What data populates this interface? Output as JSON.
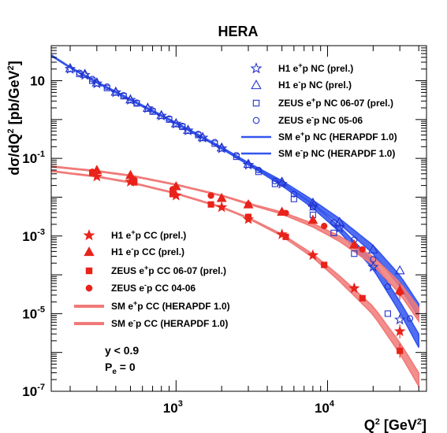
{
  "chart_data": {
    "type": "scatter",
    "title": "HERA",
    "xlabel": "Q^2 [GeV^2]",
    "ylabel": "dσ/dQ^2 [pb/GeV^2]",
    "xscale": "log",
    "yscale": "log",
    "xlim": [
      150,
      45000
    ],
    "ylim": [
      1e-07,
      80
    ],
    "y_ticks": [
      1e-07,
      1e-05,
      0.001,
      0.1,
      10
    ],
    "y_tick_labels": [
      {
        "base": "10",
        "exp": "-7"
      },
      {
        "base": "10",
        "exp": "-5"
      },
      {
        "base": "10",
        "exp": "-3"
      },
      {
        "base": "10",
        "exp": "-1"
      },
      {
        "base": "10",
        "exp": ""
      }
    ],
    "x_ticks": [
      1000,
      10000
    ],
    "x_tick_labels": [
      {
        "base": "10",
        "exp": "3"
      },
      {
        "base": "10",
        "exp": "4"
      }
    ],
    "legend_nc_position": "top-right",
    "legend_cc_position": "bottom-left",
    "annotations": [
      "y < 0.9",
      "P_e = 0"
    ],
    "colors": {
      "nc": "#2233cc",
      "cc": "#e8231a",
      "nc_band": "#3355ee",
      "cc_band": "#f07a78"
    },
    "series": [
      {
        "name": "H1 e+p NC (prel.)",
        "legend_main": "H1 e",
        "legend_sup": "+",
        "legend_rest": "p NC (prel.)",
        "marker": "star-open",
        "color": "#2233cc",
        "legend_group": "nc",
        "x": [
          200,
          250,
          300,
          400,
          500,
          650,
          800,
          1000,
          1200,
          1500,
          2000,
          3000,
          5000,
          8000,
          12000,
          20000,
          30000
        ],
        "y": [
          20,
          14,
          8.5,
          5.0,
          3.2,
          1.95,
          1.25,
          0.78,
          0.52,
          0.34,
          0.18,
          0.068,
          0.022,
          0.0058,
          0.0016,
          0.00016,
          7e-06
        ]
      },
      {
        "name": "H1 e-p NC (prel.)",
        "legend_main": "H1 e",
        "legend_sup": "-",
        "legend_rest": "p NC (prel.)",
        "marker": "triangle-open",
        "color": "#2233cc",
        "legend_group": "nc",
        "x": [
          200,
          250,
          300,
          400,
          500,
          650,
          800,
          1000,
          1200,
          1500,
          2000,
          3000,
          5000,
          8000,
          12000,
          20000,
          30000
        ],
        "y": [
          21,
          15,
          9.0,
          5.2,
          3.3,
          2.0,
          1.3,
          0.8,
          0.54,
          0.35,
          0.19,
          0.072,
          0.025,
          0.0072,
          0.0023,
          0.00045,
          0.00013
        ]
      },
      {
        "name": "ZEUS e+p NC 06-07 (prel.)",
        "legend_main": "ZEUS e",
        "legend_sup": "+",
        "legend_rest": "p NC 06-07 (prel.)",
        "marker": "square-open",
        "color": "#2233cc",
        "legend_group": "nc",
        "x": [
          230,
          280,
          350,
          450,
          550,
          700,
          900,
          1100,
          1400,
          1800,
          2500,
          3500,
          4500,
          6000,
          8000,
          11000,
          15000,
          25000
        ],
        "y": [
          15,
          10,
          6.5,
          4.0,
          2.6,
          1.6,
          1.0,
          0.65,
          0.4,
          0.24,
          0.11,
          0.045,
          0.022,
          0.009,
          0.0035,
          0.0012,
          0.00035,
          1e-05
        ]
      },
      {
        "name": "ZEUS e-p NC 05-06",
        "legend_main": "ZEUS e",
        "legend_sup": "-",
        "legend_rest": "p NC 05-06",
        "marker": "circle-open",
        "color": "#2233cc",
        "legend_group": "nc",
        "x": [
          230,
          280,
          350,
          450,
          550,
          700,
          900,
          1100,
          1400,
          1800,
          2500,
          3500,
          4500,
          6000,
          8000,
          11000,
          15000,
          20000,
          25000,
          35000
        ],
        "y": [
          16,
          11,
          7.0,
          4.2,
          2.7,
          1.7,
          1.05,
          0.68,
          0.42,
          0.26,
          0.12,
          0.05,
          0.026,
          0.012,
          0.0055,
          0.0022,
          0.0008,
          0.00025,
          5e-05,
          7.5e-06
        ]
      },
      {
        "name": "SM e+p NC (HERAPDF 1.0)",
        "legend_main": "SM e",
        "legend_sup": "+",
        "legend_rest": "p NC (HERAPDF 1.0)",
        "marker": "band",
        "color": "#3355ee",
        "legend_group": "nc",
        "x": [
          150,
          200,
          300,
          500,
          1000,
          2000,
          3000,
          5000,
          8000,
          12000,
          20000,
          30000,
          40000
        ],
        "y": [
          45,
          22,
          9.0,
          3.2,
          0.8,
          0.18,
          0.07,
          0.021,
          0.0058,
          0.0015,
          0.00018,
          1.5e-05,
          2e-06
        ]
      },
      {
        "name": "SM e-p NC (HERAPDF 1.0)",
        "legend_main": "SM e",
        "legend_sup": "-",
        "legend_rest": "p NC (HERAPDF 1.0)",
        "marker": "band",
        "color": "#3355ee",
        "legend_group": "nc",
        "x": [
          150,
          200,
          300,
          500,
          1000,
          2000,
          3000,
          5000,
          8000,
          12000,
          20000,
          30000,
          40000
        ],
        "y": [
          45,
          22,
          9.2,
          3.3,
          0.82,
          0.19,
          0.075,
          0.025,
          0.0075,
          0.0024,
          0.00045,
          7e-05,
          1.2e-05
        ]
      },
      {
        "name": "H1 e+p CC (prel.)",
        "legend_main": "H1 e",
        "legend_sup": "+",
        "legend_rest": "p CC (prel.)",
        "marker": "star-filled",
        "color": "#e8231a",
        "legend_group": "cc",
        "x": [
          300,
          500,
          1000,
          2000,
          3000,
          5000,
          8000,
          15000,
          30000
        ],
        "y": [
          0.034,
          0.025,
          0.011,
          0.0055,
          0.0027,
          0.0011,
          0.00032,
          4.5e-05,
          3.5e-06
        ]
      },
      {
        "name": "H1 e-p CC (prel.)",
        "legend_main": "H1 e",
        "legend_sup": "-",
        "legend_rest": "p CC (prel.)",
        "marker": "triangle-filled",
        "color": "#e8231a",
        "legend_group": "cc",
        "x": [
          300,
          500,
          1000,
          2000,
          3000,
          5000,
          8000,
          15000,
          30000
        ],
        "y": [
          0.05,
          0.037,
          0.019,
          0.0095,
          0.0065,
          0.0042,
          0.0026,
          0.0006,
          4e-05
        ]
      },
      {
        "name": "ZEUS e+p CC 06-07 (prel.)",
        "legend_main": "ZEUS e",
        "legend_sup": "+",
        "legend_rest": "p CC 06-07 (prel.)",
        "marker": "square-filled",
        "color": "#e8231a",
        "legend_group": "cc",
        "x": [
          280,
          530,
          950,
          1700,
          3000,
          5300,
          9500,
          17000,
          30000
        ],
        "y": [
          0.042,
          0.024,
          0.012,
          0.0065,
          0.0031,
          0.00095,
          0.00018,
          2.5e-05,
          1.1e-06
        ]
      },
      {
        "name": "ZEUS e-p CC 04-06",
        "legend_main": "ZEUS e",
        "legend_sup": "-",
        "legend_rest": "p CC 04-06",
        "marker": "circle-filled",
        "color": "#e8231a",
        "legend_group": "cc",
        "x": [
          280,
          530,
          950,
          1700,
          3000,
          5300,
          9500,
          17000,
          30000
        ],
        "y": [
          0.045,
          0.028,
          0.016,
          0.011,
          0.0065,
          0.0039,
          0.0018,
          0.00045,
          3.5e-05
        ]
      },
      {
        "name": "SM e+p CC (HERAPDF 1.0)",
        "legend_main": "SM e",
        "legend_sup": "+",
        "legend_rest": "p CC (HERAPDF 1.0)",
        "marker": "band",
        "color": "#f07a78",
        "legend_group": "cc",
        "x": [
          150,
          200,
          300,
          500,
          1000,
          2000,
          3000,
          5000,
          8000,
          12000,
          20000,
          30000,
          40000
        ],
        "y": [
          0.047,
          0.041,
          0.034,
          0.024,
          0.0125,
          0.0055,
          0.0029,
          0.00105,
          0.00031,
          8e-05,
          1.2e-05,
          1.3e-06,
          2e-07
        ]
      },
      {
        "name": "SM e-p CC (HERAPDF 1.0)",
        "legend_main": "SM e",
        "legend_sup": "-",
        "legend_rest": "p CC (HERAPDF 1.0)",
        "marker": "band",
        "color": "#f07a78",
        "legend_group": "cc",
        "x": [
          150,
          200,
          300,
          500,
          1000,
          2000,
          3000,
          5000,
          8000,
          12000,
          20000,
          30000,
          40000
        ],
        "y": [
          0.062,
          0.055,
          0.047,
          0.036,
          0.021,
          0.011,
          0.0068,
          0.0039,
          0.0019,
          0.00085,
          0.00023,
          4.5e-05,
          9.5e-06
        ]
      }
    ]
  }
}
